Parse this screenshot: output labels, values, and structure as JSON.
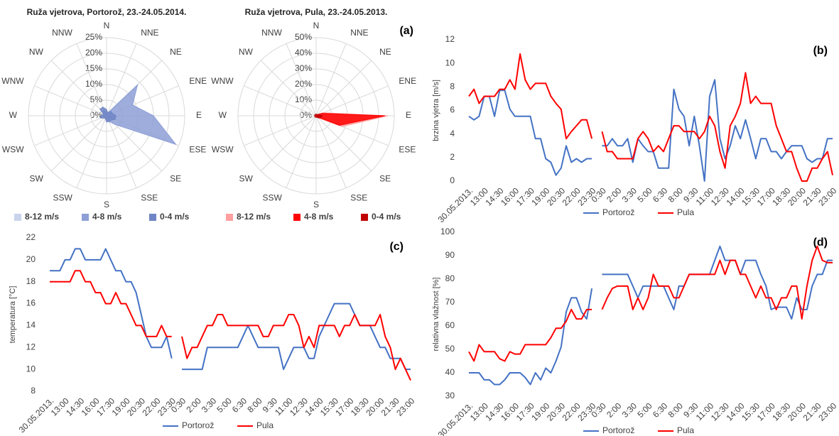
{
  "chart_data": [
    {
      "type": "radar",
      "title": "Ruža vjetrova, Portorož, 23.-24.05.2014.",
      "categories": [
        "N",
        "NNE",
        "NE",
        "ENE",
        "E",
        "ESE",
        "SE",
        "SSE",
        "S",
        "SSW",
        "SW",
        "WSW",
        "W",
        "WNW",
        "NW",
        "NNW"
      ],
      "rlim": [
        0,
        25
      ],
      "rticks": [
        {
          "value": 0,
          "label": "0%"
        },
        {
          "value": 5,
          "label": "5%"
        },
        {
          "value": 10,
          "label": "10%"
        },
        {
          "value": 15,
          "label": "15%"
        },
        {
          "value": 20,
          "label": "20%"
        },
        {
          "value": 25,
          "label": "25%"
        }
      ],
      "grid": true,
      "series": [
        {
          "name": "8-12 m/s",
          "color": "#c9d3ec",
          "values": [
            0,
            0,
            0,
            0,
            1,
            2,
            0,
            0,
            0,
            0,
            0,
            0,
            0,
            0,
            0,
            0
          ]
        },
        {
          "name": "4-8 m/s",
          "color": "#8d9fd6",
          "values": [
            1,
            1,
            14,
            9,
            15,
            24,
            4,
            2,
            1,
            1,
            1,
            1,
            1,
            1,
            2,
            2
          ]
        },
        {
          "name": "0-4 m/s",
          "color": "#6f85c4",
          "values": [
            2,
            1,
            2,
            2,
            3,
            3,
            2,
            2,
            2,
            1,
            1,
            2,
            2,
            1,
            3,
            3
          ]
        }
      ]
    },
    {
      "type": "radar",
      "title": "Ruža vjetrova, Pula, 23.-24.05.2013.",
      "annotation": "(a)",
      "categories": [
        "N",
        "NNE",
        "NE",
        "ENE",
        "E",
        "ESE",
        "SE",
        "SSE",
        "S",
        "SSW",
        "SW",
        "WSW",
        "W",
        "WNW",
        "NW",
        "NNW"
      ],
      "rlim": [
        0,
        50
      ],
      "rticks": [
        {
          "value": 0,
          "label": "0%"
        },
        {
          "value": 10,
          "label": "10%"
        },
        {
          "value": 20,
          "label": "20%"
        },
        {
          "value": 30,
          "label": "30%"
        },
        {
          "value": 40,
          "label": "40%"
        },
        {
          "value": 50,
          "label": "50%"
        }
      ],
      "grid": true,
      "series": [
        {
          "name": "8-12 m/s",
          "color": "#ff9f9f",
          "values": [
            0,
            0,
            1,
            5,
            46,
            18,
            2,
            0,
            0,
            0,
            0,
            0,
            0,
            0,
            0,
            0
          ]
        },
        {
          "name": "4-8 m/s",
          "color": "#ff0000",
          "values": [
            0,
            0,
            1,
            4,
            44,
            16,
            1,
            0,
            0,
            0,
            0,
            0,
            0,
            0,
            0,
            0
          ]
        },
        {
          "name": "0-4 m/s",
          "color": "#c00000",
          "values": [
            1,
            1,
            1,
            2,
            4,
            3,
            2,
            1,
            1,
            1,
            1,
            1,
            1,
            1,
            1,
            1
          ]
        }
      ]
    },
    {
      "type": "line",
      "annotation": "(b)",
      "y_label": "brzina vjetra [m/s]",
      "categories": [
        "30.05.2013.",
        null,
        null,
        "13:00",
        null,
        null,
        "14:30",
        null,
        null,
        "16:00",
        null,
        null,
        "17:30",
        null,
        null,
        "19:00",
        null,
        null,
        "20:30",
        null,
        null,
        "22:00",
        null,
        null,
        "23:30",
        null,
        "0:30",
        null,
        null,
        "2:00",
        null,
        null,
        "3:30",
        null,
        null,
        "5:00",
        null,
        null,
        "6:30",
        null,
        null,
        "8:00",
        null,
        null,
        "9:30",
        null,
        null,
        "11:00",
        null,
        null,
        "12:30",
        null,
        null,
        "14:00",
        null,
        null,
        "15:30",
        null,
        null,
        "17:00",
        null,
        null,
        "18:30",
        null,
        null,
        "20:00",
        null,
        null,
        "21:30",
        null,
        null,
        "23:00"
      ],
      "ylim": [
        0,
        12
      ],
      "yticks": [
        0,
        2,
        4,
        6,
        8,
        10,
        12
      ],
      "grid": false,
      "series": [
        {
          "name": "Portorož",
          "color": "#4472c4",
          "values": [
            5.5,
            5.2,
            5.5,
            7.2,
            7.2,
            5.5,
            7.7,
            7.7,
            6.1,
            5.5,
            5.5,
            5.5,
            5.5,
            3.6,
            3.6,
            1.9,
            1.6,
            0.5,
            1.1,
            3.0,
            1.6,
            1.9,
            1.6,
            1.9,
            1.9,
            null,
            3.0,
            3.0,
            3.6,
            3.0,
            3.0,
            3.6,
            1.6,
            3.6,
            3.0,
            2.5,
            2.5,
            1.1,
            1.1,
            1.1,
            7.8,
            6.1,
            5.5,
            3.0,
            5.5,
            3.0,
            0.0,
            7.2,
            8.6,
            3.6,
            1.9,
            3.0,
            4.7,
            3.6,
            5.2,
            3.6,
            1.9,
            3.6,
            3.6,
            2.5,
            2.5,
            1.9,
            2.5,
            3.0,
            3.0,
            3.0,
            1.9,
            1.6,
            1.9,
            1.9,
            3.6,
            3.6
          ]
        },
        {
          "name": "Pula",
          "color": "#ff0000",
          "values": [
            7.2,
            7.8,
            6.6,
            7.2,
            7.2,
            7.2,
            7.8,
            7.8,
            8.6,
            7.8,
            10.8,
            8.6,
            7.8,
            8.3,
            8.3,
            8.3,
            7.2,
            6.6,
            6.1,
            3.6,
            4.2,
            4.7,
            5.2,
            5.2,
            3.6,
            null,
            4.2,
            2.5,
            2.5,
            1.9,
            1.9,
            1.9,
            1.9,
            3.6,
            4.2,
            3.6,
            2.5,
            3.0,
            2.5,
            3.6,
            4.7,
            4.7,
            4.2,
            4.2,
            4.2,
            3.6,
            4.2,
            5.5,
            4.7,
            2.5,
            1.1,
            4.7,
            5.5,
            6.6,
            9.2,
            6.6,
            7.2,
            6.6,
            6.6,
            6.6,
            4.7,
            3.6,
            2.5,
            2.5,
            1.1,
            0.0,
            0.0,
            1.1,
            1.1,
            1.9,
            2.5,
            0.5
          ]
        }
      ]
    },
    {
      "type": "line",
      "annotation": "(c)",
      "y_label": "temperatura [°C]",
      "categories": [
        "30.05.2013.",
        null,
        null,
        "13:00",
        null,
        null,
        "14:30",
        null,
        null,
        "16:00",
        null,
        null,
        "17:30",
        null,
        null,
        "19:00",
        null,
        null,
        "20:30",
        null,
        null,
        "22:00",
        null,
        null,
        "23:30",
        null,
        "0:30",
        null,
        null,
        "2:00",
        null,
        null,
        "3:30",
        null,
        null,
        "5:00",
        null,
        null,
        "6:30",
        null,
        null,
        "8:00",
        null,
        null,
        "9:30",
        null,
        null,
        "11:00",
        null,
        null,
        "12:30",
        null,
        null,
        "14:00",
        null,
        null,
        "15:30",
        null,
        null,
        "17:00",
        null,
        null,
        "18:30",
        null,
        null,
        "20:00",
        null,
        null,
        "21:30",
        null,
        null,
        "23:00"
      ],
      "ylim": [
        8,
        22
      ],
      "yticks": [
        8,
        10,
        12,
        14,
        16,
        18,
        20,
        22
      ],
      "grid": false,
      "series": [
        {
          "name": "Portorož",
          "color": "#4472c4",
          "values": [
            19,
            19,
            19,
            20,
            20,
            21,
            21,
            20,
            20,
            20,
            20,
            21,
            20,
            19,
            19,
            18,
            18,
            17,
            15,
            13,
            12,
            12,
            12,
            13,
            11,
            null,
            10,
            10,
            10,
            10,
            10,
            12,
            12,
            12,
            12,
            12,
            12,
            12,
            13,
            14,
            13,
            12,
            12,
            12,
            12,
            12,
            10,
            11,
            12,
            12,
            12,
            11,
            11,
            13,
            14,
            15,
            16,
            16,
            16,
            16,
            15,
            14,
            14,
            14,
            13,
            12,
            12,
            11,
            11,
            11,
            10,
            10
          ]
        },
        {
          "name": "Pula",
          "color": "#ff0000",
          "values": [
            18,
            18,
            18,
            18,
            18,
            19,
            19,
            18,
            18,
            17,
            17,
            16,
            16,
            17,
            16,
            16,
            15,
            14,
            14,
            13,
            13,
            13,
            14,
            13,
            13,
            null,
            13,
            11,
            12,
            12,
            13,
            14,
            14,
            15,
            15,
            14,
            14,
            14,
            14,
            14,
            14,
            14,
            13,
            13,
            14,
            14,
            14,
            15,
            15,
            14,
            12,
            13,
            12,
            14,
            14,
            14,
            14,
            13,
            14,
            14,
            15,
            14,
            14,
            14,
            14,
            15,
            13,
            12,
            10,
            11,
            10,
            9
          ]
        }
      ]
    },
    {
      "type": "line",
      "annotation": "(d)",
      "y_label": "relativna vlažnost [%]",
      "categories": [
        "30.05.2013.",
        null,
        null,
        "13:00",
        null,
        null,
        "14:30",
        null,
        null,
        "16:00",
        null,
        null,
        "17:30",
        null,
        null,
        "19:00",
        null,
        null,
        "20:30",
        null,
        null,
        "22:00",
        null,
        null,
        "23:30",
        null,
        "0:30",
        null,
        null,
        "2:00",
        null,
        null,
        "3:30",
        null,
        null,
        "5:00",
        null,
        null,
        "6:30",
        null,
        null,
        "8:00",
        null,
        null,
        "9:30",
        null,
        null,
        "11:00",
        null,
        null,
        "12:30",
        null,
        null,
        "14:00",
        null,
        null,
        "15:30",
        null,
        null,
        "17:00",
        null,
        null,
        "18:30",
        null,
        null,
        "20:00",
        null,
        null,
        "21:30",
        null,
        null,
        "23:00"
      ],
      "ylim": [
        30,
        100
      ],
      "yticks": [
        30,
        40,
        50,
        60,
        70,
        80,
        90,
        100
      ],
      "grid": false,
      "series": [
        {
          "name": "Portorož",
          "color": "#4472c4",
          "values": [
            40,
            40,
            40,
            37,
            37,
            35,
            35,
            37,
            40,
            40,
            40,
            38,
            35,
            40,
            37,
            42,
            40,
            45,
            51,
            66,
            72,
            72,
            66,
            63,
            76,
            null,
            82,
            82,
            82,
            82,
            82,
            82,
            77,
            72,
            77,
            77,
            77,
            77,
            77,
            72,
            67,
            77,
            77,
            82,
            82,
            82,
            82,
            82,
            88,
            94,
            88,
            88,
            88,
            82,
            88,
            88,
            88,
            82,
            77,
            67,
            68,
            68,
            68,
            63,
            72,
            67,
            67,
            77,
            82,
            82,
            88,
            88
          ]
        },
        {
          "name": "Pula",
          "color": "#ff0000",
          "values": [
            49,
            45,
            52,
            49,
            49,
            49,
            46,
            45,
            49,
            48,
            48,
            52,
            52,
            52,
            52,
            52,
            55,
            59,
            59,
            62,
            67,
            63,
            63,
            67,
            67,
            null,
            67,
            72,
            76,
            77,
            77,
            77,
            67,
            72,
            67,
            72,
            82,
            77,
            77,
            77,
            72,
            72,
            77,
            82,
            82,
            82,
            82,
            82,
            82,
            88,
            82,
            88,
            88,
            82,
            82,
            77,
            72,
            77,
            72,
            72,
            67,
            72,
            72,
            77,
            77,
            63,
            77,
            88,
            94,
            88,
            87,
            87
          ]
        }
      ]
    }
  ]
}
